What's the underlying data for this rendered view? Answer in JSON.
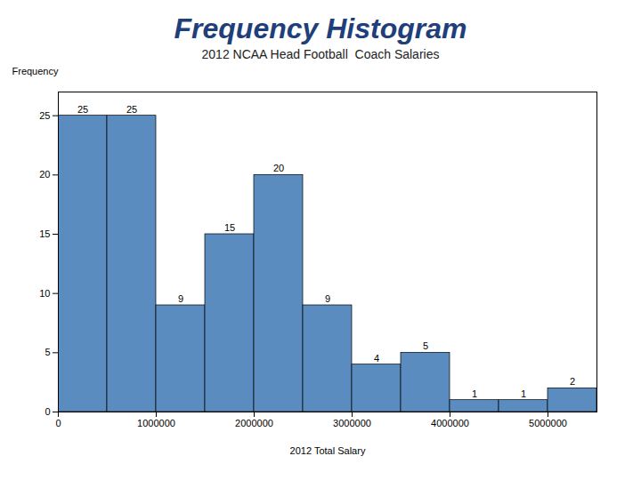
{
  "chart_data": {
    "type": "histogram",
    "title": "Frequency Histogram",
    "subtitle": "2012 NCAA Head Football  Coach Salaries",
    "xlabel": "2012 Total Salary",
    "ylabel": "Frequency",
    "bins": [
      0,
      500000,
      1000000,
      1500000,
      2000000,
      2500000,
      3000000,
      3500000,
      4000000,
      4500000,
      5000000,
      5500000
    ],
    "values": [
      25,
      25,
      9,
      15,
      20,
      9,
      4,
      5,
      1,
      1,
      2
    ],
    "color": "#5b8cbf",
    "xlim": [
      0,
      5500000
    ],
    "xticks": [
      0,
      1000000,
      2000000,
      3000000,
      4000000,
      5000000
    ],
    "ylim": [
      0,
      27
    ],
    "yticks": [
      0,
      5,
      10,
      15,
      20,
      25
    ],
    "data_labels": true,
    "grid": false
  }
}
